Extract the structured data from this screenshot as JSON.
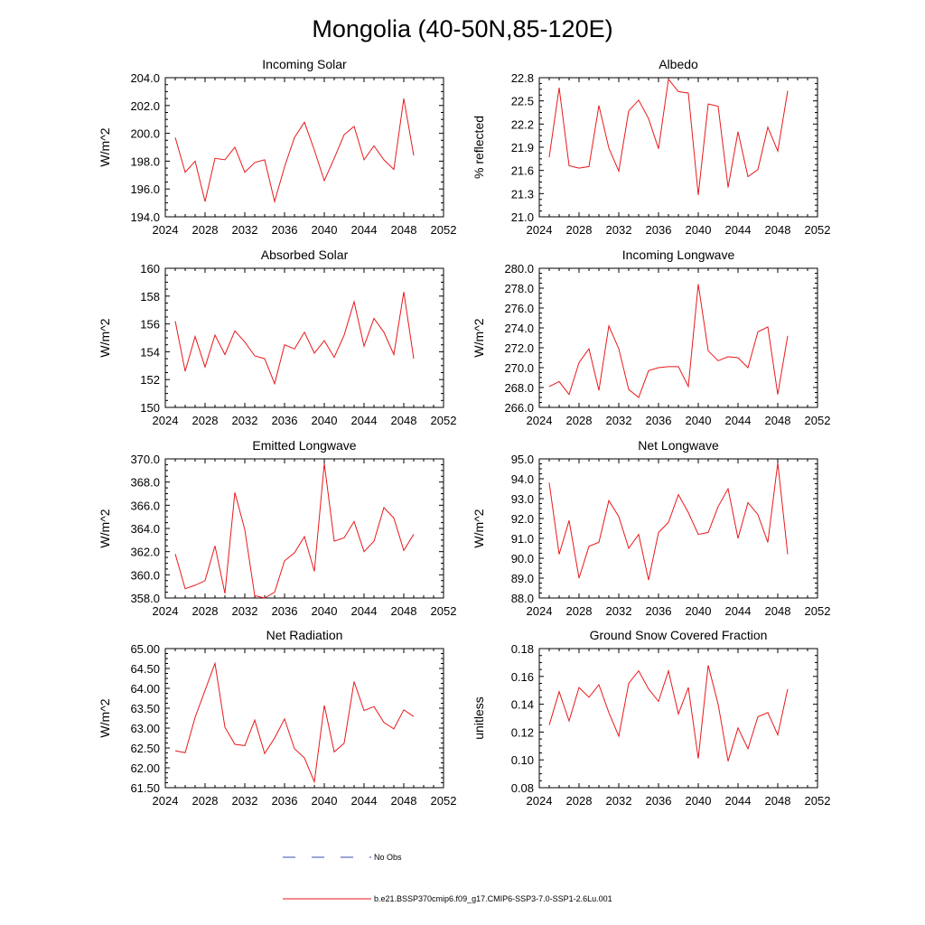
{
  "figure_title": "Mongolia (40-50N,85-120E)",
  "colors": {
    "series": "#e8191c",
    "obs": "#3b4bb0",
    "axis": "#000000"
  },
  "legend": {
    "obs_label": "No Obs",
    "model_label": "b.e21.BSSP370cmip6.f09_g17.CMIP6-SSP3-7.0-SSP1-2.6Lu.001"
  },
  "chart_data": [
    {
      "type": "line",
      "title": "Incoming Solar",
      "ylabel": "W/m^2",
      "xlim": [
        2024,
        2052
      ],
      "ylim": [
        194,
        204
      ],
      "xticks": [
        2024,
        2028,
        2032,
        2036,
        2040,
        2044,
        2048,
        2052
      ],
      "yticks": [
        194,
        196,
        198,
        200,
        202,
        204
      ],
      "ydec": 1,
      "x": [
        2025,
        2026,
        2027,
        2028,
        2029,
        2030,
        2031,
        2032,
        2033,
        2034,
        2035,
        2036,
        2037,
        2038,
        2039,
        2040,
        2041,
        2042,
        2043,
        2044,
        2045,
        2046,
        2047,
        2048,
        2049
      ],
      "values": [
        199.7,
        197.2,
        198.0,
        195.1,
        198.2,
        198.1,
        199.0,
        197.2,
        197.9,
        198.1,
        195.1,
        197.6,
        199.7,
        200.8,
        198.8,
        196.6,
        198.2,
        199.9,
        200.5,
        198.1,
        199.1,
        198.1,
        197.4,
        202.5,
        198.4
      ]
    },
    {
      "type": "line",
      "title": "Albedo",
      "ylabel": "% reflected",
      "xlim": [
        2024,
        2052
      ],
      "ylim": [
        21.0,
        22.8
      ],
      "xticks": [
        2024,
        2028,
        2032,
        2036,
        2040,
        2044,
        2048,
        2052
      ],
      "yticks": [
        21.0,
        21.3,
        21.6,
        21.9,
        22.2,
        22.5,
        22.8
      ],
      "ydec": 1,
      "x": [
        2025,
        2026,
        2027,
        2028,
        2029,
        2030,
        2031,
        2032,
        2033,
        2034,
        2035,
        2036,
        2037,
        2038,
        2039,
        2040,
        2041,
        2042,
        2043,
        2044,
        2045,
        2046,
        2047,
        2048,
        2049
      ],
      "values": [
        21.77,
        22.67,
        21.66,
        21.63,
        21.65,
        22.44,
        21.89,
        21.59,
        22.37,
        22.51,
        22.27,
        21.88,
        22.78,
        22.62,
        22.6,
        21.28,
        22.46,
        22.43,
        21.38,
        22.1,
        21.52,
        21.61,
        22.16,
        21.85,
        22.63
      ]
    },
    {
      "type": "line",
      "title": "Absorbed Solar",
      "ylabel": "W/m^2",
      "xlim": [
        2024,
        2052
      ],
      "ylim": [
        150,
        160
      ],
      "xticks": [
        2024,
        2028,
        2032,
        2036,
        2040,
        2044,
        2048,
        2052
      ],
      "yticks": [
        150,
        152,
        154,
        156,
        158,
        160
      ],
      "ydec": 0,
      "x": [
        2025,
        2026,
        2027,
        2028,
        2029,
        2030,
        2031,
        2032,
        2033,
        2034,
        2035,
        2036,
        2037,
        2038,
        2039,
        2040,
        2041,
        2042,
        2043,
        2044,
        2045,
        2046,
        2047,
        2048,
        2049
      ],
      "values": [
        156.2,
        152.6,
        155.1,
        152.9,
        155.2,
        153.8,
        155.5,
        154.7,
        153.7,
        153.5,
        151.7,
        154.5,
        154.2,
        155.4,
        153.9,
        154.8,
        153.6,
        155.2,
        157.6,
        154.4,
        156.4,
        155.4,
        153.8,
        158.3,
        153.5
      ]
    },
    {
      "type": "line",
      "title": "Incoming Longwave",
      "ylabel": "W/m^2",
      "xlim": [
        2024,
        2052
      ],
      "ylim": [
        266,
        280
      ],
      "xticks": [
        2024,
        2028,
        2032,
        2036,
        2040,
        2044,
        2048,
        2052
      ],
      "yticks": [
        266,
        268,
        270,
        272,
        274,
        276,
        278,
        280
      ],
      "ydec": 1,
      "x": [
        2025,
        2026,
        2027,
        2028,
        2029,
        2030,
        2031,
        2032,
        2033,
        2034,
        2035,
        2036,
        2037,
        2038,
        2039,
        2040,
        2041,
        2042,
        2043,
        2044,
        2045,
        2046,
        2047,
        2048,
        2049
      ],
      "values": [
        268.1,
        268.6,
        267.3,
        270.5,
        271.9,
        267.7,
        274.2,
        271.9,
        267.8,
        267.0,
        269.7,
        270.0,
        270.1,
        270.1,
        268.1,
        278.4,
        271.7,
        270.7,
        271.1,
        271.0,
        270.0,
        273.6,
        274.1,
        267.3,
        273.2
      ]
    },
    {
      "type": "line",
      "title": "Emitted Longwave",
      "ylabel": "W/m^2",
      "xlim": [
        2024,
        2052
      ],
      "ylim": [
        358,
        370
      ],
      "xticks": [
        2024,
        2028,
        2032,
        2036,
        2040,
        2044,
        2048,
        2052
      ],
      "yticks": [
        358,
        360,
        362,
        364,
        366,
        368,
        370
      ],
      "ydec": 1,
      "x": [
        2025,
        2026,
        2027,
        2028,
        2029,
        2030,
        2031,
        2032,
        2033,
        2034,
        2035,
        2036,
        2037,
        2038,
        2039,
        2040,
        2041,
        2042,
        2043,
        2044,
        2045,
        2046,
        2047,
        2048,
        2049
      ],
      "values": [
        361.8,
        358.8,
        359.1,
        359.5,
        362.5,
        358.4,
        367.1,
        363.9,
        358.2,
        358.0,
        358.5,
        361.2,
        361.9,
        363.3,
        360.3,
        369.6,
        362.9,
        363.2,
        364.6,
        362.0,
        362.9,
        365.8,
        364.9,
        362.1,
        363.5
      ]
    },
    {
      "type": "line",
      "title": "Net Longwave",
      "ylabel": "W/m^2",
      "xlim": [
        2024,
        2052
      ],
      "ylim": [
        88,
        95
      ],
      "xticks": [
        2024,
        2028,
        2032,
        2036,
        2040,
        2044,
        2048,
        2052
      ],
      "yticks": [
        88,
        89,
        90,
        91,
        92,
        93,
        94,
        95
      ],
      "ydec": 1,
      "x": [
        2025,
        2026,
        2027,
        2028,
        2029,
        2030,
        2031,
        2032,
        2033,
        2034,
        2035,
        2036,
        2037,
        2038,
        2039,
        2040,
        2041,
        2042,
        2043,
        2044,
        2045,
        2046,
        2047,
        2048,
        2049
      ],
      "values": [
        93.8,
        90.2,
        91.9,
        89.0,
        90.6,
        90.8,
        92.9,
        92.1,
        90.5,
        91.2,
        88.9,
        91.3,
        91.8,
        93.2,
        92.3,
        91.2,
        91.3,
        92.6,
        93.5,
        91.0,
        92.8,
        92.2,
        90.8,
        94.8,
        90.2
      ]
    },
    {
      "type": "line",
      "title": "Net Radiation",
      "ylabel": "W/m^2",
      "xlim": [
        2024,
        2052
      ],
      "ylim": [
        61.5,
        65.0
      ],
      "xticks": [
        2024,
        2028,
        2032,
        2036,
        2040,
        2044,
        2048,
        2052
      ],
      "yticks": [
        61.5,
        62.0,
        62.5,
        63.0,
        63.5,
        64.0,
        64.5,
        65.0
      ],
      "ydec": 2,
      "x": [
        2025,
        2026,
        2027,
        2028,
        2029,
        2030,
        2031,
        2032,
        2033,
        2034,
        2035,
        2036,
        2037,
        2038,
        2039,
        2040,
        2041,
        2042,
        2043,
        2044,
        2045,
        2046,
        2047,
        2048,
        2049
      ],
      "values": [
        62.43,
        62.38,
        63.27,
        63.95,
        64.63,
        63.02,
        62.59,
        62.56,
        63.2,
        62.36,
        62.75,
        63.23,
        62.48,
        62.25,
        61.65,
        63.57,
        62.4,
        62.62,
        64.17,
        63.44,
        63.54,
        63.14,
        62.98,
        63.46,
        63.29
      ]
    },
    {
      "type": "line",
      "title": "Ground Snow Covered Fraction",
      "ylabel": "unitless",
      "xlim": [
        2024,
        2052
      ],
      "ylim": [
        0.08,
        0.18
      ],
      "xticks": [
        2024,
        2028,
        2032,
        2036,
        2040,
        2044,
        2048,
        2052
      ],
      "yticks": [
        0.08,
        0.1,
        0.12,
        0.14,
        0.16,
        0.18
      ],
      "ydec": 2,
      "x": [
        2025,
        2026,
        2027,
        2028,
        2029,
        2030,
        2031,
        2032,
        2033,
        2034,
        2035,
        2036,
        2037,
        2038,
        2039,
        2040,
        2041,
        2042,
        2043,
        2044,
        2045,
        2046,
        2047,
        2048,
        2049
      ],
      "values": [
        0.125,
        0.149,
        0.128,
        0.152,
        0.145,
        0.154,
        0.134,
        0.117,
        0.155,
        0.164,
        0.151,
        0.142,
        0.164,
        0.133,
        0.152,
        0.101,
        0.168,
        0.14,
        0.099,
        0.123,
        0.108,
        0.131,
        0.134,
        0.118,
        0.151
      ]
    }
  ]
}
